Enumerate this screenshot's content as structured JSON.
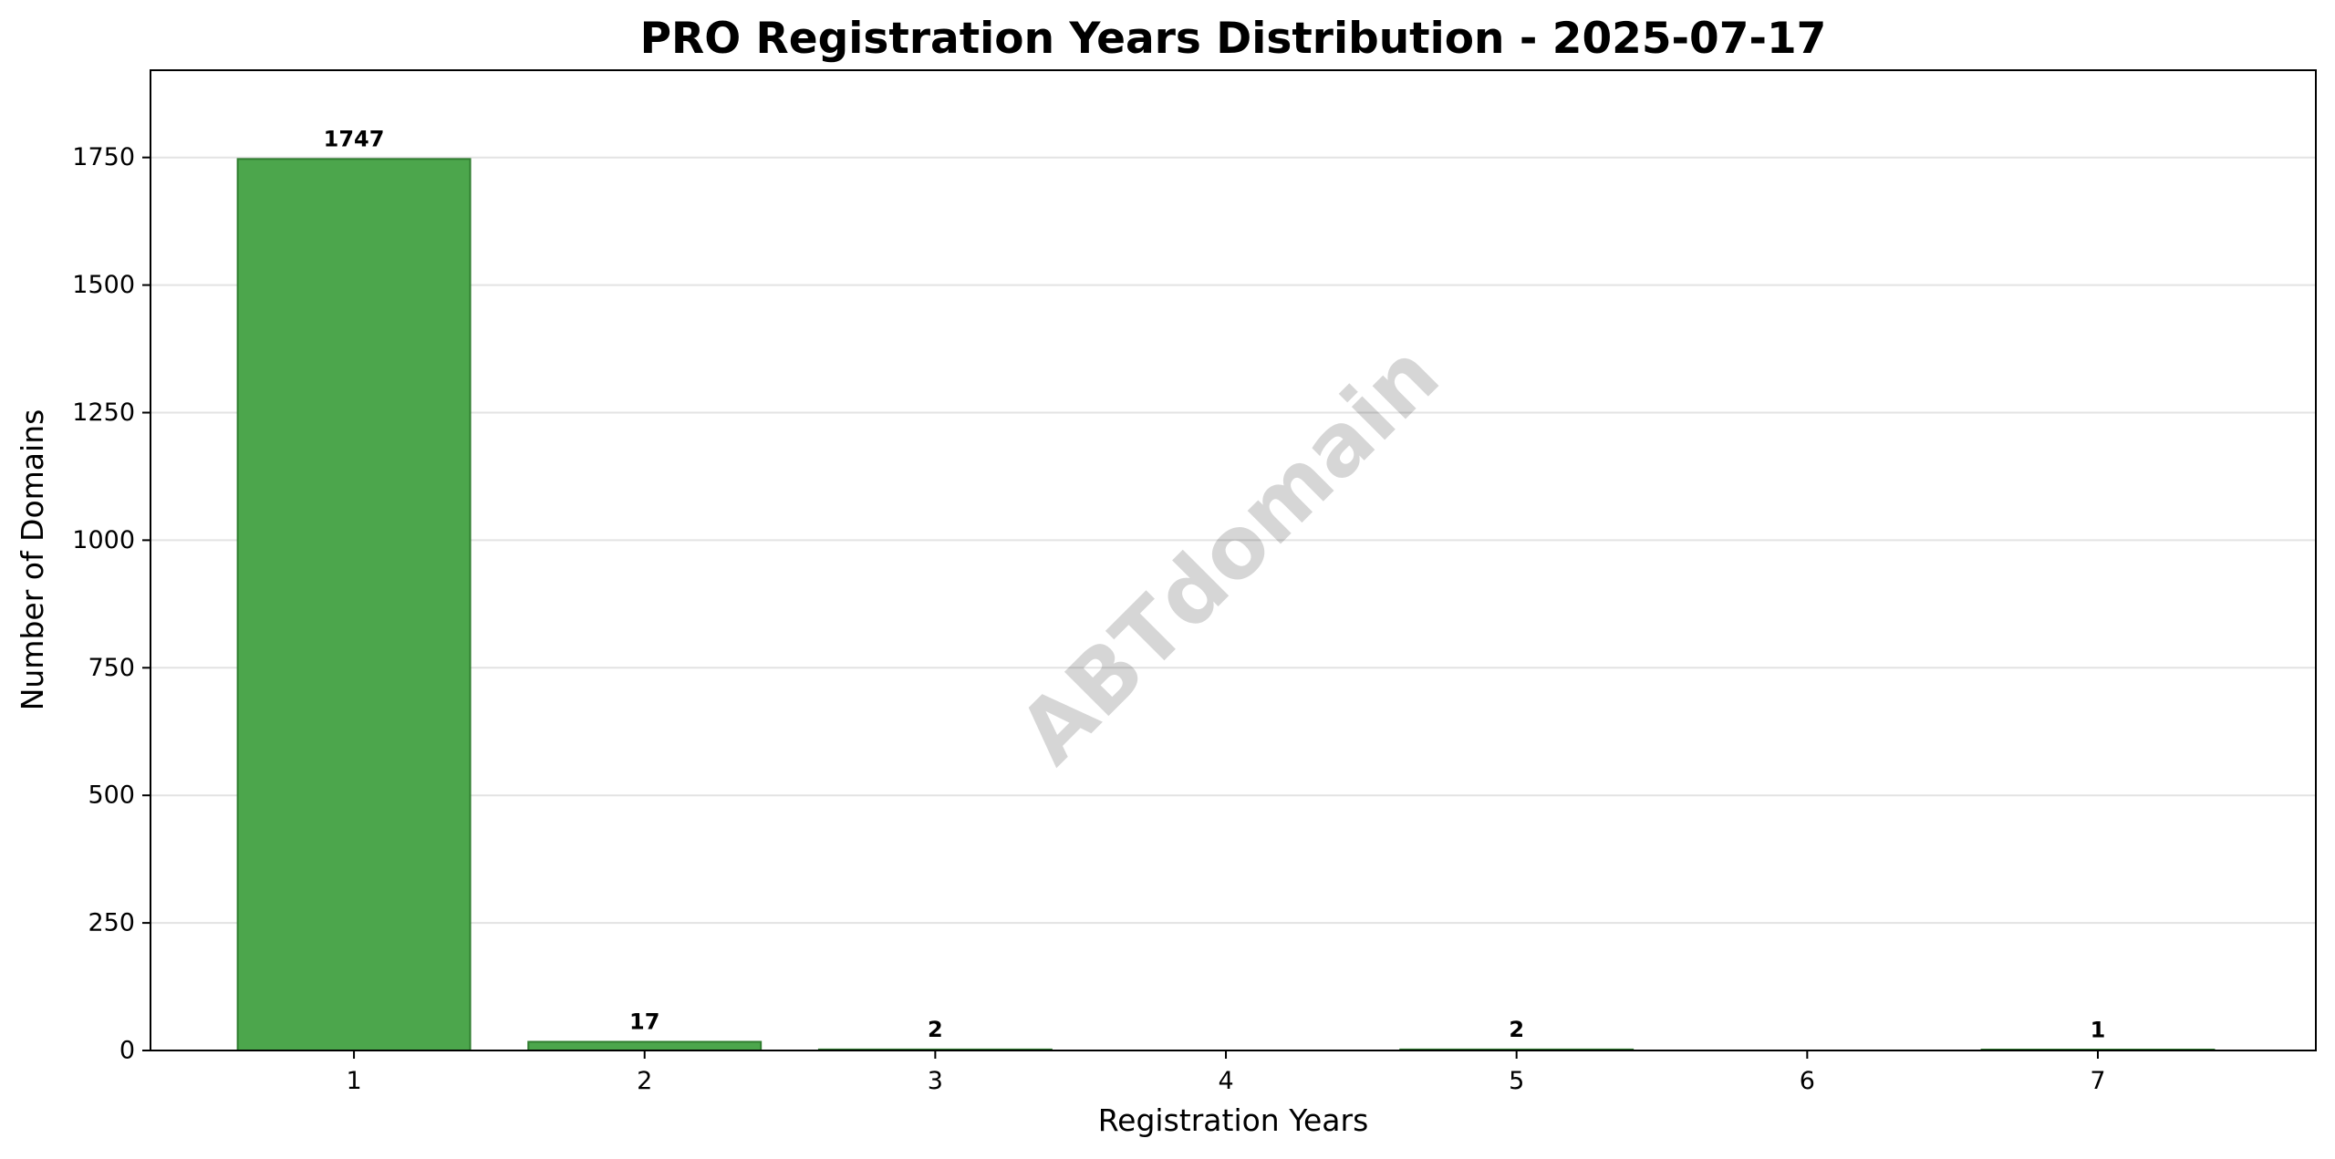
{
  "chart_data": {
    "type": "bar",
    "title": "PRO Registration Years Distribution - 2025-07-17",
    "xlabel": "Registration Years",
    "ylabel": "Number of Domains",
    "x_ticks": [
      "1",
      "2",
      "3",
      "4",
      "5",
      "6",
      "7"
    ],
    "categories": [
      1,
      2,
      3,
      5,
      7
    ],
    "values": [
      1747,
      17,
      2,
      2,
      1
    ],
    "data_labels": [
      "1747",
      "17",
      "2",
      "2",
      "1"
    ],
    "xlim": [
      0.3,
      7.75
    ],
    "ylim": [
      0,
      1921
    ],
    "y_ticks": [
      0,
      250,
      500,
      750,
      1000,
      1250,
      1500,
      1750
    ],
    "y_tick_labels": [
      "0",
      "250",
      "500",
      "750",
      "1000",
      "1250",
      "1500",
      "1750"
    ],
    "grid": "y",
    "legend": "none",
    "watermark": "ABTdomain",
    "colors": {
      "bar_fill": "#4ca64c",
      "bar_edge": "#2f7d2f",
      "grid": "#e3e3e3",
      "axis": "#000000",
      "watermark": "#cccccc"
    }
  }
}
